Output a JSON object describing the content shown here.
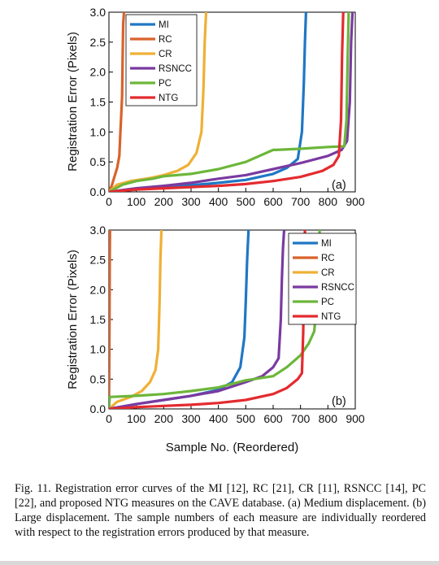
{
  "colors": {
    "MI": "#1f77c4",
    "RC": "#d9622b",
    "CR": "#efb035",
    "RSNCC": "#7a3aa0",
    "PC": "#6cb63a",
    "NTG": "#e42a2e"
  },
  "chart_data": [
    {
      "type": "line",
      "tag": "(a)",
      "xlabel": "",
      "ylabel": "Registration Error (Pixels)",
      "xlim": [
        0,
        900
      ],
      "ylim": [
        0,
        3.0
      ],
      "xticks": [
        "0",
        "100",
        "200",
        "300",
        "400",
        "500",
        "600",
        "700",
        "800",
        "900"
      ],
      "yticks": [
        "0.0",
        "0.5",
        "1.0",
        "1.5",
        "2.0",
        "2.5",
        "3.0"
      ],
      "legend": "top-left",
      "series": [
        {
          "name": "MI",
          "x": [
            0,
            100,
            200,
            300,
            400,
            500,
            600,
            650,
            690,
            705,
            712,
            716,
            720
          ],
          "y": [
            0,
            0.05,
            0.08,
            0.11,
            0.15,
            0.2,
            0.3,
            0.4,
            0.55,
            1.0,
            1.8,
            2.5,
            3.0
          ]
        },
        {
          "name": "RC",
          "x": [
            0,
            10,
            20,
            30,
            38,
            42,
            45,
            48,
            50,
            52,
            55
          ],
          "y": [
            0,
            0.1,
            0.25,
            0.4,
            0.6,
            1.0,
            1.3,
            1.6,
            2.2,
            2.8,
            3.0
          ]
        },
        {
          "name": "CR",
          "x": [
            0,
            30,
            80,
            150,
            200,
            250,
            290,
            320,
            338,
            345,
            350,
            355
          ],
          "y": [
            0,
            0.12,
            0.18,
            0.23,
            0.28,
            0.35,
            0.45,
            0.65,
            1.0,
            1.7,
            2.5,
            3.0
          ]
        },
        {
          "name": "RSNCC",
          "x": [
            0,
            100,
            200,
            300,
            400,
            500,
            600,
            700,
            800,
            850,
            870,
            880,
            885,
            890
          ],
          "y": [
            0,
            0.06,
            0.1,
            0.15,
            0.22,
            0.28,
            0.38,
            0.48,
            0.6,
            0.7,
            0.85,
            1.5,
            2.5,
            3.0
          ]
        },
        {
          "name": "PC",
          "x": [
            0,
            50,
            100,
            160,
            200,
            300,
            400,
            500,
            600,
            610,
            700,
            800,
            860,
            868,
            872,
            876
          ],
          "y": [
            0,
            0.12,
            0.18,
            0.22,
            0.26,
            0.3,
            0.38,
            0.5,
            0.7,
            0.7,
            0.72,
            0.75,
            0.76,
            1.2,
            2.2,
            3.0
          ]
        },
        {
          "name": "NTG",
          "x": [
            0,
            100,
            200,
            300,
            400,
            500,
            600,
            700,
            780,
            820,
            840,
            848,
            852,
            856
          ],
          "y": [
            0,
            0.04,
            0.06,
            0.08,
            0.1,
            0.13,
            0.18,
            0.25,
            0.35,
            0.45,
            0.6,
            1.2,
            2.3,
            3.0
          ]
        }
      ]
    },
    {
      "type": "line",
      "tag": "(b)",
      "xlabel": "Sample No. (Reordered)",
      "ylabel": "Registration Error (Pixels)",
      "xlim": [
        0,
        900
      ],
      "ylim": [
        0,
        3.0
      ],
      "xticks": [
        "0",
        "100",
        "200",
        "300",
        "400",
        "500",
        "600",
        "700",
        "800",
        "900"
      ],
      "yticks": [
        "0.0",
        "0.5",
        "1.0",
        "1.5",
        "2.0",
        "2.5",
        "3.0"
      ],
      "legend": "top-right",
      "series": [
        {
          "name": "MI",
          "x": [
            0,
            100,
            200,
            300,
            400,
            450,
            480,
            495,
            500,
            505,
            510
          ],
          "y": [
            0,
            0.08,
            0.15,
            0.22,
            0.32,
            0.45,
            0.7,
            1.2,
            1.8,
            2.5,
            3.0
          ]
        },
        {
          "name": "RC",
          "x": [
            0,
            1,
            2,
            3,
            4
          ],
          "y": [
            0,
            0.5,
            1.5,
            2.5,
            3.0
          ]
        },
        {
          "name": "CR",
          "x": [
            0,
            30,
            80,
            120,
            150,
            170,
            180,
            185,
            188,
            192
          ],
          "y": [
            0,
            0.12,
            0.2,
            0.3,
            0.45,
            0.65,
            1.0,
            1.8,
            2.5,
            3.0
          ]
        },
        {
          "name": "RSNCC",
          "x": [
            0,
            100,
            200,
            300,
            400,
            500,
            560,
            600,
            620,
            628,
            632,
            636,
            640
          ],
          "y": [
            0,
            0.08,
            0.15,
            0.22,
            0.3,
            0.45,
            0.55,
            0.7,
            0.85,
            1.5,
            2.2,
            2.7,
            3.0
          ]
        },
        {
          "name": "PC",
          "x": [
            0,
            3,
            100,
            200,
            300,
            400,
            500,
            600,
            650,
            700,
            730,
            750,
            760,
            765,
            770
          ],
          "y": [
            0,
            0.2,
            0.22,
            0.25,
            0.3,
            0.36,
            0.48,
            0.55,
            0.7,
            0.9,
            1.1,
            1.3,
            1.8,
            2.5,
            3.0
          ]
        },
        {
          "name": "NTG",
          "x": [
            0,
            100,
            200,
            300,
            400,
            500,
            600,
            650,
            690,
            705,
            710,
            713,
            716
          ],
          "y": [
            0,
            0.03,
            0.05,
            0.07,
            0.1,
            0.15,
            0.25,
            0.35,
            0.5,
            0.6,
            1.3,
            2.3,
            3.0
          ]
        }
      ]
    }
  ],
  "caption": {
    "text": "Fig. 11.    Registration error curves of the MI [12], RC [21], CR [11], RSNCC [14], PC [22], and proposed NTG measures on the CAVE database. (a) Medium displacement. (b) Large displacement. The sample numbers of each measure are individually reordered with respect to the registration errors produced by that measure."
  }
}
